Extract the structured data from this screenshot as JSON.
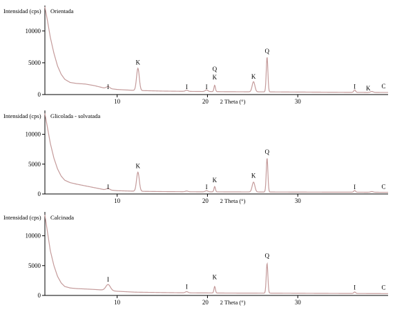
{
  "chart_data": [
    {
      "type": "line",
      "sample_label": "Orientada",
      "ylabel": "Intensidad (cps)",
      "xlabel": "2 Theta (°)",
      "xlim": [
        2,
        40
      ],
      "ylim": [
        0,
        14000
      ],
      "xticks": [
        10,
        20,
        30
      ],
      "yticks": [
        0,
        5000,
        10000
      ],
      "series": [
        {
          "base": [
            [
              2,
              13800
            ],
            [
              2.3,
              11500
            ],
            [
              2.6,
              9000
            ],
            [
              3,
              6500
            ],
            [
              3.4,
              4500
            ],
            [
              3.8,
              3200
            ],
            [
              4.2,
              2400
            ],
            [
              4.8,
              1900
            ],
            [
              5.5,
              1750
            ],
            [
              6.5,
              1650
            ],
            [
              7.5,
              1400
            ],
            [
              8.5,
              1050
            ],
            [
              10,
              800
            ],
            [
              12,
              650
            ],
            [
              15,
              550
            ],
            [
              18,
              500
            ],
            [
              22,
              450
            ],
            [
              27,
              420
            ],
            [
              32,
              380
            ],
            [
              36,
              350
            ],
            [
              40,
              330
            ]
          ],
          "peaks": [
            [
              9.0,
              300,
              0.18
            ],
            [
              12.3,
              3500,
              0.15
            ],
            [
              17.7,
              180,
              0.15
            ],
            [
              19.9,
              250,
              0.15
            ],
            [
              20.8,
              1000,
              0.08
            ],
            [
              25.1,
              1600,
              0.15
            ],
            [
              26.6,
              5500,
              0.09
            ],
            [
              36.3,
              380,
              0.1
            ],
            [
              38.2,
              150,
              0.15
            ]
          ]
        }
      ],
      "annotations": [
        {
          "text": "I",
          "x": 9.0,
          "y": 850
        },
        {
          "text": "K",
          "x": 12.3,
          "y": 4700
        },
        {
          "text": "I",
          "x": 17.7,
          "y": 850
        },
        {
          "text": "I",
          "x": 19.9,
          "y": 850
        },
        {
          "text": "Q",
          "x": 20.8,
          "y": 3700
        },
        {
          "text": "K",
          "x": 20.8,
          "y": 2400
        },
        {
          "text": "K",
          "x": 25.1,
          "y": 2500
        },
        {
          "text": "Q",
          "x": 26.6,
          "y": 6500
        },
        {
          "text": "I",
          "x": 36.3,
          "y": 900
        },
        {
          "text": "K",
          "x": 37.8,
          "y": 650
        },
        {
          "text": "C",
          "x": 39.5,
          "y": 950
        }
      ]
    },
    {
      "type": "line",
      "sample_label": "Glicolada - solvatada",
      "ylabel": "Intensidad (cps)",
      "xlabel": "2 Theta (°)",
      "xlim": [
        2,
        40
      ],
      "ylim": [
        0,
        14000
      ],
      "xticks": [
        10,
        20,
        30
      ],
      "yticks": [
        0,
        5000,
        10000
      ],
      "series": [
        {
          "base": [
            [
              2,
              13500
            ],
            [
              2.3,
              11000
            ],
            [
              2.6,
              8500
            ],
            [
              3,
              6000
            ],
            [
              3.4,
              4200
            ],
            [
              3.8,
              3000
            ],
            [
              4.2,
              2300
            ],
            [
              4.8,
              1900
            ],
            [
              5.5,
              1650
            ],
            [
              6.5,
              1350
            ],
            [
              7.5,
              1050
            ],
            [
              8.5,
              750
            ],
            [
              10,
              550
            ],
            [
              12,
              460
            ],
            [
              15,
              400
            ],
            [
              18,
              370
            ],
            [
              22,
              350
            ],
            [
              27,
              330
            ],
            [
              32,
              310
            ],
            [
              36,
              300
            ],
            [
              40,
              280
            ]
          ],
          "peaks": [
            [
              9.0,
              250,
              0.18
            ],
            [
              12.3,
              3200,
              0.15
            ],
            [
              17.7,
              120,
              0.15
            ],
            [
              19.9,
              180,
              0.15
            ],
            [
              20.8,
              900,
              0.08
            ],
            [
              25.1,
              1650,
              0.15
            ],
            [
              26.6,
              5700,
              0.09
            ],
            [
              36.3,
              280,
              0.1
            ],
            [
              38.2,
              120,
              0.15
            ]
          ]
        }
      ],
      "annotations": [
        {
          "text": "I",
          "x": 9.0,
          "y": 800
        },
        {
          "text": "K",
          "x": 12.3,
          "y": 4350
        },
        {
          "text": "I",
          "x": 19.9,
          "y": 800
        },
        {
          "text": "K",
          "x": 20.8,
          "y": 1950
        },
        {
          "text": "K",
          "x": 25.1,
          "y": 2700
        },
        {
          "text": "Q",
          "x": 26.6,
          "y": 6700
        },
        {
          "text": "I",
          "x": 36.3,
          "y": 800
        },
        {
          "text": "C",
          "x": 39.5,
          "y": 850
        }
      ]
    },
    {
      "type": "line",
      "sample_label": "Calcinada",
      "ylabel": "Intensidad (cps)",
      "xlabel": "2 Theta (°)",
      "xlim": [
        2,
        40
      ],
      "ylim": [
        0,
        14000
      ],
      "xticks": [
        10,
        20,
        30
      ],
      "yticks": [
        0,
        5000,
        10000
      ],
      "series": [
        {
          "base": [
            [
              2,
              13500
            ],
            [
              2.3,
              10500
            ],
            [
              2.6,
              7500
            ],
            [
              3,
              5000
            ],
            [
              3.4,
              3200
            ],
            [
              3.8,
              2100
            ],
            [
              4.2,
              1500
            ],
            [
              4.8,
              1250
            ],
            [
              5.5,
              1150
            ],
            [
              6.5,
              1080
            ],
            [
              7.5,
              1000
            ],
            [
              8.5,
              900
            ],
            [
              10,
              700
            ],
            [
              12,
              550
            ],
            [
              15,
              480
            ],
            [
              18,
              430
            ],
            [
              22,
              400
            ],
            [
              27,
              380
            ],
            [
              32,
              350
            ],
            [
              36,
              330
            ],
            [
              40,
              310
            ]
          ],
          "peaks": [
            [
              9.0,
              1000,
              0.25
            ],
            [
              17.7,
              200,
              0.15
            ],
            [
              20.8,
              1100,
              0.08
            ],
            [
              26.6,
              5000,
              0.09
            ],
            [
              36.3,
              250,
              0.1
            ]
          ]
        }
      ],
      "annotations": [
        {
          "text": "I",
          "x": 9.0,
          "y": 2300
        },
        {
          "text": "I",
          "x": 17.7,
          "y": 1100
        },
        {
          "text": "K",
          "x": 20.8,
          "y": 2700
        },
        {
          "text": "Q",
          "x": 26.6,
          "y": 6300
        },
        {
          "text": "I",
          "x": 36.3,
          "y": 1000
        },
        {
          "text": "C",
          "x": 39.5,
          "y": 1000
        }
      ]
    }
  ],
  "colors": {
    "trace": "#c49a9a",
    "axis": "#000000"
  }
}
